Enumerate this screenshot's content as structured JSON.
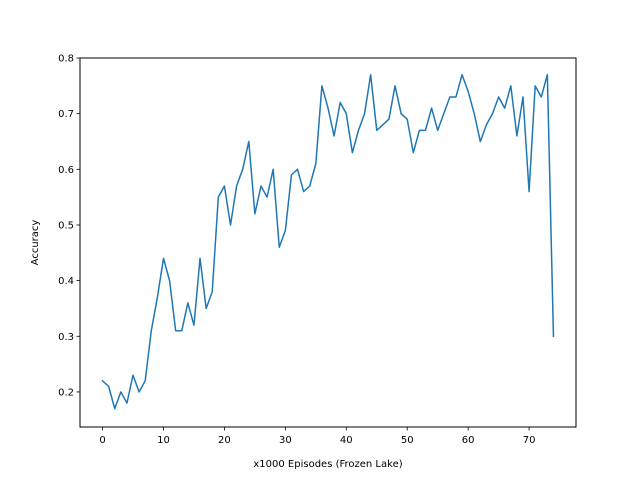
{
  "chart_data": {
    "type": "line",
    "title": "",
    "xlabel": "x1000 Episodes (Frozen Lake)",
    "ylabel": "Accuracy",
    "xlim": [
      -3.7,
      77.7
    ],
    "ylim": [
      0.137,
      0.8
    ],
    "xticks": [
      0,
      10,
      20,
      30,
      40,
      50,
      60,
      70
    ],
    "yticks": [
      0.2,
      0.3,
      0.4,
      0.5,
      0.6,
      0.7,
      0.8
    ],
    "grid": false,
    "series": [
      {
        "color": "#1f77b4",
        "x": [
          0,
          1,
          2,
          3,
          4,
          5,
          6,
          7,
          8,
          9,
          10,
          11,
          12,
          13,
          14,
          15,
          16,
          17,
          18,
          19,
          20,
          21,
          22,
          23,
          24,
          25,
          26,
          27,
          28,
          29,
          30,
          31,
          32,
          33,
          34,
          35,
          36,
          37,
          38,
          39,
          40,
          41,
          42,
          43,
          44,
          45,
          46,
          47,
          48,
          49,
          50,
          51,
          52,
          53,
          54,
          55,
          56,
          57,
          58,
          59,
          60,
          61,
          62,
          63,
          64,
          65,
          66,
          67,
          68,
          69,
          70,
          71,
          72,
          73,
          74
        ],
        "values": [
          0.22,
          0.21,
          0.17,
          0.2,
          0.18,
          0.23,
          0.2,
          0.22,
          0.31,
          0.37,
          0.44,
          0.4,
          0.31,
          0.31,
          0.36,
          0.32,
          0.44,
          0.35,
          0.38,
          0.55,
          0.57,
          0.5,
          0.57,
          0.6,
          0.65,
          0.52,
          0.57,
          0.55,
          0.6,
          0.46,
          0.49,
          0.59,
          0.6,
          0.56,
          0.57,
          0.61,
          0.75,
          0.71,
          0.66,
          0.72,
          0.7,
          0.63,
          0.67,
          0.7,
          0.77,
          0.67,
          0.68,
          0.69,
          0.75,
          0.7,
          0.69,
          0.63,
          0.67,
          0.67,
          0.71,
          0.67,
          0.7,
          0.73,
          0.73,
          0.77,
          0.74,
          0.7,
          0.65,
          0.68,
          0.7,
          0.73,
          0.71,
          0.75,
          0.66,
          0.73,
          0.56,
          0.75,
          0.73,
          0.77,
          0.3
        ]
      }
    ]
  }
}
